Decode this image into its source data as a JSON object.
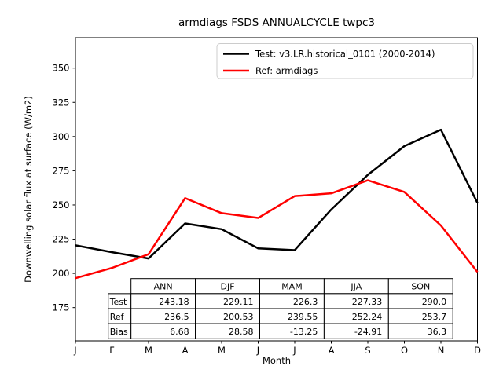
{
  "title": "armdiags FSDS ANNUALCYCLE twpc3",
  "axes": {
    "ylabel": "Downwelling solar flux at surface (W/m2)",
    "xlabel": "Month",
    "yticks": [
      350,
      325,
      300,
      275,
      250,
      225,
      200,
      175
    ],
    "xticks": [
      "J",
      "F",
      "M",
      "A",
      "M",
      "J",
      "J",
      "A",
      "S",
      "O",
      "N",
      "D"
    ]
  },
  "legend": {
    "items": [
      {
        "label": "Test: v3.LR.historical_0101 (2000-2014)",
        "color": "#000000"
      },
      {
        "label": "Ref: armdiags",
        "color": "#ff0000"
      }
    ]
  },
  "chart_data": {
    "type": "line",
    "title": "armdiags FSDS ANNUALCYCLE twpc3",
    "xlabel": "Month",
    "ylabel": "Downwelling solar flux at surface (W/m2)",
    "x": [
      "J",
      "F",
      "M",
      "A",
      "M",
      "J",
      "J",
      "A",
      "S",
      "O",
      "N",
      "D"
    ],
    "ylim": [
      151,
      372
    ],
    "yticks": [
      175,
      200,
      225,
      250,
      275,
      300,
      325,
      350
    ],
    "grid": false,
    "legend_position": "upper right",
    "series": [
      {
        "name": "Test: v3.LR.historical_0101 (2000-2014)",
        "color": "#000000",
        "values_estimated": [
          220.5,
          215.5,
          210.9,
          236.5,
          232.3,
          218.3,
          217.0,
          246.7,
          272.0,
          293.0,
          305.0,
          251.5
        ]
      },
      {
        "name": "Ref: armdiags",
        "color": "#ff0000",
        "values_estimated": [
          196.5,
          204.0,
          214.0,
          255.0,
          244.0,
          240.5,
          256.5,
          258.5,
          268.0,
          259.5,
          235.0,
          201.0
        ]
      }
    ],
    "note": "monthly series values estimated from plot pixels; seasonal/annual stats below are exact as printed",
    "stats_table": {
      "columns": [
        "ANN",
        "DJF",
        "MAM",
        "JJA",
        "SON"
      ],
      "rows": [
        {
          "label": "Test",
          "values": [
            "243.18",
            "229.11",
            "226.3",
            "227.33",
            "290.0"
          ]
        },
        {
          "label": "Ref",
          "values": [
            "236.5",
            "200.53",
            "239.55",
            "252.24",
            "253.7"
          ]
        },
        {
          "label": "Bias",
          "values": [
            "6.68",
            "28.58",
            "-13.25",
            "-24.91",
            "36.3"
          ]
        }
      ]
    }
  }
}
